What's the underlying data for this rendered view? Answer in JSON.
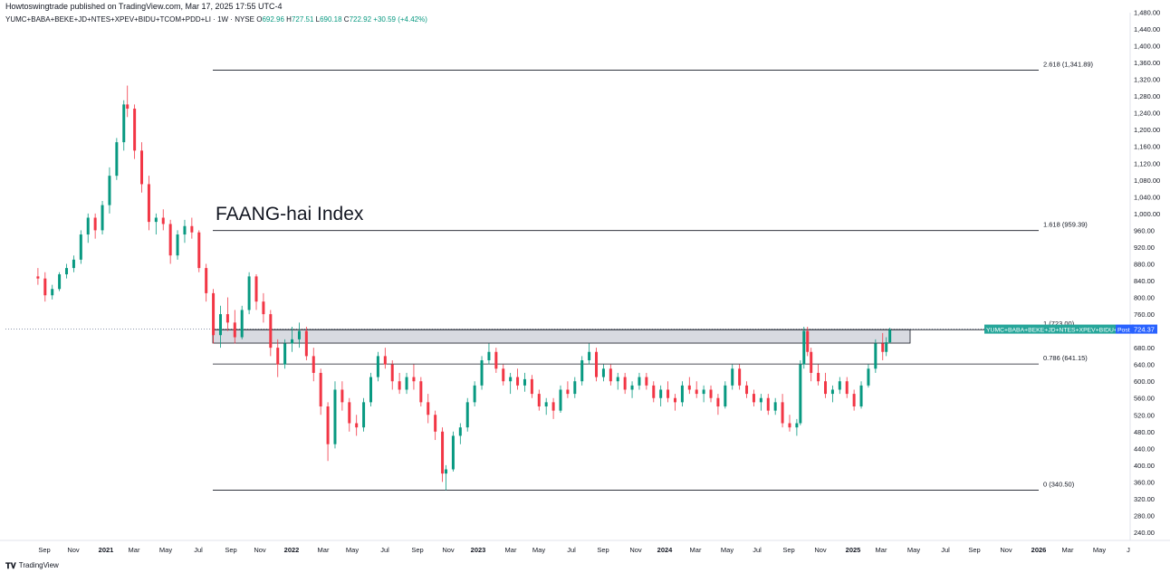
{
  "header": {
    "published_text": "Howtoswingtrade published on TradingView.com, Mar 17, 2025 17:55 UTC-4"
  },
  "legend": {
    "symbol": "YUMC+BABA+BEKE+JD+NTES+XPEV+BIDU+TCOM+PDD+LI · 1W · NYSE",
    "o_label": "O",
    "o_value": "692.96",
    "h_label": "H",
    "h_value": "727.51",
    "l_label": "L",
    "l_value": "690.18",
    "c_label": "C",
    "c_value": "722.92",
    "change": "+30.59 (+4.42%)"
  },
  "footer": {
    "brand": "TradingView",
    "logo_icon": "tradingview-logo-icon"
  },
  "colors": {
    "up": "#089981",
    "down": "#f23645",
    "fib_line": "#131722",
    "zone_fill": "#d1d4dc",
    "price_tag": "#2962ff",
    "symbol_tag": "#26a69a"
  },
  "chart_data": {
    "type": "candlestick",
    "title": "FAANG-hai Index",
    "price_axis": {
      "ylim": [
        220,
        1480
      ],
      "ticks": [
        240,
        280,
        320,
        360,
        400,
        440,
        480,
        520,
        560,
        600,
        640,
        680,
        720,
        760,
        800,
        840,
        880,
        920,
        960,
        1000,
        1040,
        1080,
        1120,
        1160,
        1200,
        1240,
        1280,
        1320,
        1360,
        1400,
        1440,
        1480
      ],
      "tick_labels": [
        "240.00",
        "280.00",
        "320.00",
        "360.00",
        "400.00",
        "440.00",
        "480.00",
        "520.00",
        "560.00",
        "600.00",
        "640.00",
        "680.00",
        "720.00",
        "760.00",
        "800.00",
        "840.00",
        "880.00",
        "920.00",
        "960.00",
        "1,000.00",
        "1,040.00",
        "1,080.00",
        "1,120.00",
        "1,160.00",
        "1,200.00",
        "1,240.00",
        "1,280.00",
        "1,320.00",
        "1,360.00",
        "1,400.00",
        "1,440.00",
        "1,480.00"
      ]
    },
    "time_axis": {
      "labels": [
        "Sep",
        "Nov",
        "2021",
        "Mar",
        "May",
        "Jul",
        "Sep",
        "Nov",
        "2022",
        "Mar",
        "May",
        "Jul",
        "Sep",
        "Nov",
        "2023",
        "Mar",
        "May",
        "Jul",
        "Sep",
        "Nov",
        "2024",
        "Mar",
        "May",
        "Jul",
        "Sep",
        "Nov",
        "2025",
        "Mar",
        "May",
        "Jul",
        "Sep",
        "Nov",
        "2026",
        "Mar",
        "May",
        "J"
      ],
      "bold": [
        "2021",
        "2022",
        "2023",
        "2024",
        "2025",
        "2026"
      ]
    },
    "fib_levels": [
      {
        "label": "2.618 (1,341.89)",
        "value": 1341.89
      },
      {
        "label": "1.618 (959.39)",
        "value": 959.39
      },
      {
        "label": "1 (723.00)",
        "value": 723.0
      },
      {
        "label": "0.786 (641.15)",
        "value": 641.15
      },
      {
        "label": "0 (340.50)",
        "value": 340.5
      }
    ],
    "zone": {
      "top": 723.0,
      "bottom": 691.0
    },
    "last_price": {
      "symbol_tag": "YUMC+BABA+BEKE+JD+NTES+XPEV+BIDU+TC",
      "session": "Post",
      "value": "724.37"
    },
    "series_weekly_close": [
      {
        "date": "2020-08-21",
        "o": 850,
        "h": 870,
        "l": 830,
        "c": 845
      },
      {
        "date": "2020-09-04",
        "o": 845,
        "h": 860,
        "l": 790,
        "c": 805
      },
      {
        "date": "2020-09-18",
        "o": 805,
        "h": 830,
        "l": 795,
        "c": 820
      },
      {
        "date": "2020-10-02",
        "o": 820,
        "h": 860,
        "l": 815,
        "c": 855
      },
      {
        "date": "2020-10-16",
        "o": 855,
        "h": 880,
        "l": 845,
        "c": 870
      },
      {
        "date": "2020-10-30",
        "o": 870,
        "h": 900,
        "l": 860,
        "c": 890
      },
      {
        "date": "2020-11-13",
        "o": 890,
        "h": 960,
        "l": 880,
        "c": 950
      },
      {
        "date": "2020-11-27",
        "o": 950,
        "h": 1000,
        "l": 930,
        "c": 990
      },
      {
        "date": "2020-12-11",
        "o": 990,
        "h": 1000,
        "l": 940,
        "c": 960
      },
      {
        "date": "2020-12-25",
        "o": 960,
        "h": 1030,
        "l": 950,
        "c": 1020
      },
      {
        "date": "2021-01-08",
        "o": 1020,
        "h": 1110,
        "l": 1000,
        "c": 1090
      },
      {
        "date": "2021-01-22",
        "o": 1090,
        "h": 1180,
        "l": 1080,
        "c": 1170
      },
      {
        "date": "2021-02-05",
        "o": 1170,
        "h": 1270,
        "l": 1150,
        "c": 1260
      },
      {
        "date": "2021-02-12",
        "o": 1260,
        "h": 1305,
        "l": 1230,
        "c": 1250
      },
      {
        "date": "2021-02-26",
        "o": 1250,
        "h": 1260,
        "l": 1130,
        "c": 1150
      },
      {
        "date": "2021-03-12",
        "o": 1150,
        "h": 1170,
        "l": 1050,
        "c": 1070
      },
      {
        "date": "2021-03-26",
        "o": 1070,
        "h": 1090,
        "l": 960,
        "c": 980
      },
      {
        "date": "2021-04-09",
        "o": 980,
        "h": 1000,
        "l": 950,
        "c": 990
      },
      {
        "date": "2021-04-23",
        "o": 990,
        "h": 1010,
        "l": 960,
        "c": 975
      },
      {
        "date": "2021-05-07",
        "o": 975,
        "h": 985,
        "l": 880,
        "c": 900
      },
      {
        "date": "2021-05-21",
        "o": 900,
        "h": 960,
        "l": 890,
        "c": 950
      },
      {
        "date": "2021-06-04",
        "o": 950,
        "h": 985,
        "l": 930,
        "c": 970
      },
      {
        "date": "2021-06-18",
        "o": 970,
        "h": 990,
        "l": 940,
        "c": 955
      },
      {
        "date": "2021-07-02",
        "o": 955,
        "h": 960,
        "l": 860,
        "c": 870
      },
      {
        "date": "2021-07-16",
        "o": 870,
        "h": 880,
        "l": 790,
        "c": 810
      },
      {
        "date": "2021-07-30",
        "o": 810,
        "h": 820,
        "l": 690,
        "c": 710
      },
      {
        "date": "2021-08-13",
        "o": 710,
        "h": 780,
        "l": 680,
        "c": 760
      },
      {
        "date": "2021-08-27",
        "o": 760,
        "h": 800,
        "l": 720,
        "c": 740
      },
      {
        "date": "2021-09-10",
        "o": 740,
        "h": 770,
        "l": 690,
        "c": 705
      },
      {
        "date": "2021-09-24",
        "o": 705,
        "h": 780,
        "l": 700,
        "c": 770
      },
      {
        "date": "2021-10-08",
        "o": 770,
        "h": 860,
        "l": 760,
        "c": 850
      },
      {
        "date": "2021-10-22",
        "o": 850,
        "h": 855,
        "l": 770,
        "c": 790
      },
      {
        "date": "2021-11-05",
        "o": 790,
        "h": 810,
        "l": 740,
        "c": 760
      },
      {
        "date": "2021-11-19",
        "o": 760,
        "h": 770,
        "l": 660,
        "c": 680
      },
      {
        "date": "2021-12-03",
        "o": 680,
        "h": 700,
        "l": 610,
        "c": 640
      },
      {
        "date": "2021-12-17",
        "o": 640,
        "h": 700,
        "l": 630,
        "c": 690
      },
      {
        "date": "2021-12-31",
        "o": 690,
        "h": 730,
        "l": 670,
        "c": 700
      },
      {
        "date": "2022-01-14",
        "o": 700,
        "h": 740,
        "l": 680,
        "c": 720
      },
      {
        "date": "2022-01-28",
        "o": 720,
        "h": 730,
        "l": 650,
        "c": 660
      },
      {
        "date": "2022-02-11",
        "o": 660,
        "h": 680,
        "l": 600,
        "c": 620
      },
      {
        "date": "2022-02-25",
        "o": 620,
        "h": 630,
        "l": 520,
        "c": 540
      },
      {
        "date": "2022-03-11",
        "o": 540,
        "h": 550,
        "l": 410,
        "c": 450
      },
      {
        "date": "2022-03-25",
        "o": 450,
        "h": 600,
        "l": 440,
        "c": 580
      },
      {
        "date": "2022-04-08",
        "o": 580,
        "h": 600,
        "l": 530,
        "c": 550
      },
      {
        "date": "2022-04-22",
        "o": 550,
        "h": 560,
        "l": 480,
        "c": 500
      },
      {
        "date": "2022-05-06",
        "o": 500,
        "h": 520,
        "l": 470,
        "c": 490
      },
      {
        "date": "2022-05-20",
        "o": 490,
        "h": 560,
        "l": 480,
        "c": 550
      },
      {
        "date": "2022-06-03",
        "o": 550,
        "h": 620,
        "l": 540,
        "c": 610
      },
      {
        "date": "2022-06-17",
        "o": 610,
        "h": 670,
        "l": 600,
        "c": 660
      },
      {
        "date": "2022-07-01",
        "o": 660,
        "h": 680,
        "l": 630,
        "c": 640
      },
      {
        "date": "2022-07-15",
        "o": 640,
        "h": 650,
        "l": 580,
        "c": 600
      },
      {
        "date": "2022-07-29",
        "o": 600,
        "h": 620,
        "l": 570,
        "c": 580
      },
      {
        "date": "2022-08-12",
        "o": 580,
        "h": 620,
        "l": 570,
        "c": 610
      },
      {
        "date": "2022-08-26",
        "o": 610,
        "h": 640,
        "l": 580,
        "c": 600
      },
      {
        "date": "2022-09-09",
        "o": 600,
        "h": 610,
        "l": 540,
        "c": 550
      },
      {
        "date": "2022-09-23",
        "o": 550,
        "h": 570,
        "l": 500,
        "c": 520
      },
      {
        "date": "2022-10-07",
        "o": 520,
        "h": 530,
        "l": 460,
        "c": 480
      },
      {
        "date": "2022-10-21",
        "o": 480,
        "h": 490,
        "l": 360,
        "c": 380
      },
      {
        "date": "2022-10-28",
        "o": 380,
        "h": 400,
        "l": 340,
        "c": 390
      },
      {
        "date": "2022-11-11",
        "o": 390,
        "h": 480,
        "l": 385,
        "c": 470
      },
      {
        "date": "2022-11-25",
        "o": 470,
        "h": 500,
        "l": 450,
        "c": 490
      },
      {
        "date": "2022-12-09",
        "o": 490,
        "h": 560,
        "l": 480,
        "c": 550
      },
      {
        "date": "2022-12-23",
        "o": 550,
        "h": 600,
        "l": 540,
        "c": 590
      },
      {
        "date": "2023-01-06",
        "o": 590,
        "h": 660,
        "l": 580,
        "c": 650
      },
      {
        "date": "2023-01-20",
        "o": 650,
        "h": 690,
        "l": 640,
        "c": 670
      },
      {
        "date": "2023-02-03",
        "o": 670,
        "h": 680,
        "l": 620,
        "c": 630
      },
      {
        "date": "2023-02-17",
        "o": 630,
        "h": 640,
        "l": 590,
        "c": 600
      },
      {
        "date": "2023-03-03",
        "o": 600,
        "h": 620,
        "l": 570,
        "c": 610
      },
      {
        "date": "2023-03-17",
        "o": 610,
        "h": 630,
        "l": 580,
        "c": 590
      },
      {
        "date": "2023-03-31",
        "o": 590,
        "h": 620,
        "l": 575,
        "c": 605
      },
      {
        "date": "2023-04-14",
        "o": 605,
        "h": 615,
        "l": 560,
        "c": 570
      },
      {
        "date": "2023-04-28",
        "o": 570,
        "h": 580,
        "l": 530,
        "c": 540
      },
      {
        "date": "2023-05-12",
        "o": 540,
        "h": 560,
        "l": 520,
        "c": 550
      },
      {
        "date": "2023-05-26",
        "o": 550,
        "h": 560,
        "l": 510,
        "c": 530
      },
      {
        "date": "2023-06-09",
        "o": 530,
        "h": 590,
        "l": 525,
        "c": 580
      },
      {
        "date": "2023-06-23",
        "o": 580,
        "h": 600,
        "l": 560,
        "c": 570
      },
      {
        "date": "2023-07-07",
        "o": 570,
        "h": 610,
        "l": 560,
        "c": 600
      },
      {
        "date": "2023-07-21",
        "o": 600,
        "h": 660,
        "l": 590,
        "c": 650
      },
      {
        "date": "2023-08-04",
        "o": 650,
        "h": 690,
        "l": 640,
        "c": 670
      },
      {
        "date": "2023-08-18",
        "o": 670,
        "h": 680,
        "l": 600,
        "c": 610
      },
      {
        "date": "2023-09-01",
        "o": 610,
        "h": 640,
        "l": 600,
        "c": 630
      },
      {
        "date": "2023-09-15",
        "o": 630,
        "h": 640,
        "l": 590,
        "c": 600
      },
      {
        "date": "2023-09-29",
        "o": 600,
        "h": 620,
        "l": 580,
        "c": 610
      },
      {
        "date": "2023-10-13",
        "o": 610,
        "h": 620,
        "l": 570,
        "c": 580
      },
      {
        "date": "2023-10-27",
        "o": 580,
        "h": 600,
        "l": 560,
        "c": 590
      },
      {
        "date": "2023-11-10",
        "o": 590,
        "h": 620,
        "l": 580,
        "c": 610
      },
      {
        "date": "2023-11-24",
        "o": 610,
        "h": 620,
        "l": 580,
        "c": 590
      },
      {
        "date": "2023-12-08",
        "o": 590,
        "h": 600,
        "l": 550,
        "c": 560
      },
      {
        "date": "2023-12-22",
        "o": 560,
        "h": 590,
        "l": 540,
        "c": 580
      },
      {
        "date": "2024-01-05",
        "o": 580,
        "h": 600,
        "l": 550,
        "c": 560
      },
      {
        "date": "2024-01-19",
        "o": 560,
        "h": 570,
        "l": 530,
        "c": 550
      },
      {
        "date": "2024-02-02",
        "o": 550,
        "h": 600,
        "l": 540,
        "c": 590
      },
      {
        "date": "2024-02-16",
        "o": 590,
        "h": 610,
        "l": 570,
        "c": 580
      },
      {
        "date": "2024-03-01",
        "o": 580,
        "h": 600,
        "l": 560,
        "c": 570
      },
      {
        "date": "2024-03-15",
        "o": 570,
        "h": 590,
        "l": 550,
        "c": 580
      },
      {
        "date": "2024-03-29",
        "o": 580,
        "h": 590,
        "l": 550,
        "c": 560
      },
      {
        "date": "2024-04-12",
        "o": 560,
        "h": 570,
        "l": 520,
        "c": 540
      },
      {
        "date": "2024-04-26",
        "o": 540,
        "h": 600,
        "l": 535,
        "c": 590
      },
      {
        "date": "2024-05-10",
        "o": 590,
        "h": 640,
        "l": 580,
        "c": 630
      },
      {
        "date": "2024-05-24",
        "o": 630,
        "h": 640,
        "l": 580,
        "c": 590
      },
      {
        "date": "2024-06-07",
        "o": 590,
        "h": 600,
        "l": 560,
        "c": 570
      },
      {
        "date": "2024-06-21",
        "o": 570,
        "h": 580,
        "l": 540,
        "c": 550
      },
      {
        "date": "2024-07-05",
        "o": 550,
        "h": 570,
        "l": 530,
        "c": 560
      },
      {
        "date": "2024-07-19",
        "o": 560,
        "h": 570,
        "l": 520,
        "c": 530
      },
      {
        "date": "2024-08-02",
        "o": 530,
        "h": 560,
        "l": 520,
        "c": 550
      },
      {
        "date": "2024-08-16",
        "o": 550,
        "h": 570,
        "l": 490,
        "c": 500
      },
      {
        "date": "2024-08-30",
        "o": 500,
        "h": 520,
        "l": 480,
        "c": 490
      },
      {
        "date": "2024-09-13",
        "o": 490,
        "h": 510,
        "l": 470,
        "c": 500
      },
      {
        "date": "2024-09-20",
        "o": 500,
        "h": 650,
        "l": 495,
        "c": 640
      },
      {
        "date": "2024-09-27",
        "o": 640,
        "h": 730,
        "l": 630,
        "c": 720
      },
      {
        "date": "2024-10-04",
        "o": 720,
        "h": 730,
        "l": 660,
        "c": 670
      },
      {
        "date": "2024-10-11",
        "o": 670,
        "h": 680,
        "l": 600,
        "c": 620
      },
      {
        "date": "2024-10-25",
        "o": 620,
        "h": 640,
        "l": 590,
        "c": 600
      },
      {
        "date": "2024-11-08",
        "o": 600,
        "h": 620,
        "l": 560,
        "c": 570
      },
      {
        "date": "2024-11-22",
        "o": 570,
        "h": 590,
        "l": 550,
        "c": 580
      },
      {
        "date": "2024-12-06",
        "o": 580,
        "h": 610,
        "l": 570,
        "c": 600
      },
      {
        "date": "2024-12-20",
        "o": 600,
        "h": 610,
        "l": 560,
        "c": 570
      },
      {
        "date": "2025-01-03",
        "o": 570,
        "h": 580,
        "l": 530,
        "c": 540
      },
      {
        "date": "2025-01-17",
        "o": 540,
        "h": 600,
        "l": 535,
        "c": 590
      },
      {
        "date": "2025-01-31",
        "o": 590,
        "h": 640,
        "l": 585,
        "c": 630
      },
      {
        "date": "2025-02-14",
        "o": 630,
        "h": 700,
        "l": 620,
        "c": 690
      },
      {
        "date": "2025-02-28",
        "o": 690,
        "h": 715,
        "l": 650,
        "c": 670
      },
      {
        "date": "2025-03-07",
        "o": 670,
        "h": 705,
        "l": 660,
        "c": 693
      },
      {
        "date": "2025-03-14",
        "o": 692.96,
        "h": 727.51,
        "l": 690.18,
        "c": 722.92
      }
    ]
  }
}
